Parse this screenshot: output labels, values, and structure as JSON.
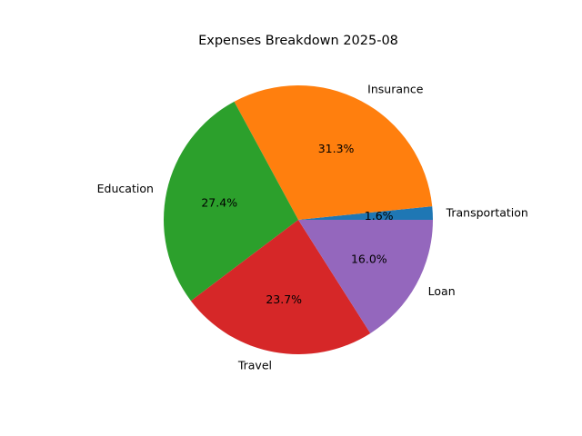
{
  "chart_data": {
    "type": "pie",
    "title": "Expenses Breakdown 2025-08",
    "categories": [
      "Transportation",
      "Insurance",
      "Education",
      "Travel",
      "Loan"
    ],
    "values": [
      1.6,
      31.3,
      27.4,
      23.7,
      16.0
    ],
    "value_labels": [
      "1.6%",
      "31.3%",
      "27.4%",
      "23.7%",
      "16.0%"
    ],
    "colors": [
      "#1f77b4",
      "#ff7f0e",
      "#2ca02c",
      "#d62728",
      "#9467bd"
    ],
    "start_angle_deg": 0,
    "direction": "counterclockwise",
    "legend": "none"
  }
}
